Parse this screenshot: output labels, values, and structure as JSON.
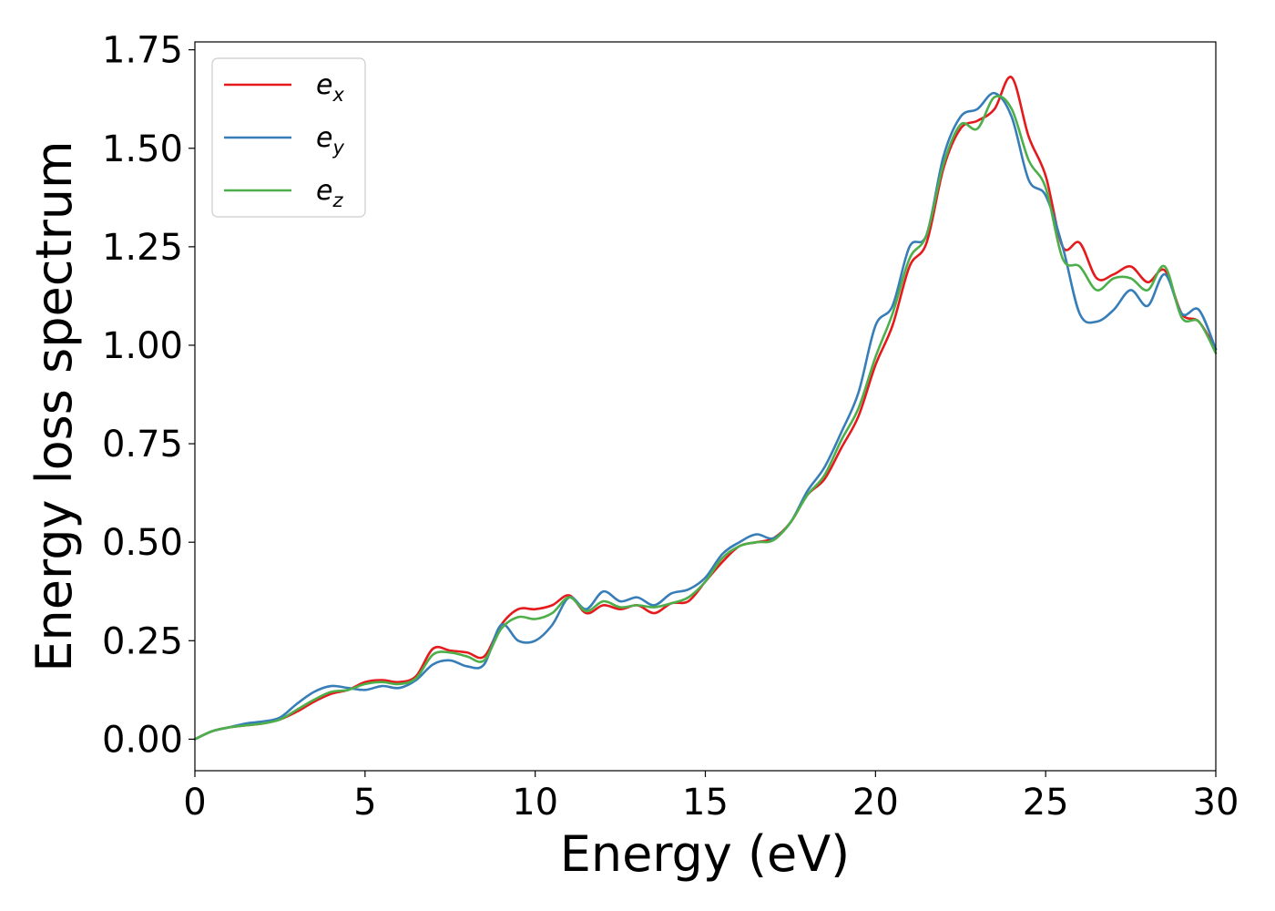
{
  "chart_data": {
    "type": "line",
    "xlabel": "Energy (eV)",
    "ylabel": "Energy loss spectrum",
    "xlim": [
      0,
      30
    ],
    "ylim": [
      -0.08,
      1.77
    ],
    "xticks": [
      0,
      5,
      10,
      15,
      20,
      25,
      30
    ],
    "xtick_labels": [
      "0",
      "5",
      "10",
      "15",
      "20",
      "25",
      "30"
    ],
    "yticks": [
      0.0,
      0.25,
      0.5,
      0.75,
      1.0,
      1.25,
      1.5,
      1.75
    ],
    "ytick_labels": [
      "0.00",
      "0.25",
      "0.50",
      "0.75",
      "1.00",
      "1.25",
      "1.50",
      "1.75"
    ],
    "grid": false,
    "legend_position": "top-left",
    "series": [
      {
        "name": "e_x",
        "label_main": "e",
        "label_sub": "x",
        "color": "#e41a1c",
        "x": [
          0,
          0.5,
          1,
          1.5,
          2,
          2.5,
          3,
          3.5,
          4,
          4.5,
          5,
          5.5,
          6,
          6.5,
          7,
          7.5,
          8,
          8.5,
          9,
          9.5,
          10,
          10.5,
          11,
          11.5,
          12,
          12.5,
          13,
          13.5,
          14,
          14.5,
          15,
          15.5,
          16,
          16.5,
          17,
          17.5,
          18,
          18.5,
          19,
          19.5,
          20,
          20.5,
          21,
          21.5,
          22,
          22.5,
          23,
          23.5,
          24,
          24.5,
          25,
          25.5,
          26,
          26.5,
          27,
          27.5,
          28,
          28.5,
          29,
          29.5,
          30
        ],
        "y": [
          0.0,
          0.02,
          0.03,
          0.035,
          0.04,
          0.05,
          0.07,
          0.095,
          0.115,
          0.125,
          0.145,
          0.15,
          0.145,
          0.16,
          0.23,
          0.225,
          0.22,
          0.21,
          0.29,
          0.33,
          0.33,
          0.34,
          0.365,
          0.32,
          0.34,
          0.33,
          0.34,
          0.32,
          0.345,
          0.35,
          0.4,
          0.45,
          0.49,
          0.5,
          0.51,
          0.55,
          0.62,
          0.66,
          0.74,
          0.82,
          0.95,
          1.05,
          1.2,
          1.26,
          1.45,
          1.55,
          1.57,
          1.6,
          1.68,
          1.53,
          1.43,
          1.25,
          1.26,
          1.17,
          1.18,
          1.2,
          1.16,
          1.19,
          1.08,
          1.06,
          0.99
        ]
      },
      {
        "name": "e_y",
        "label_main": "e",
        "label_sub": "y",
        "color": "#377eb8",
        "x": [
          0,
          0.5,
          1,
          1.5,
          2,
          2.5,
          3,
          3.5,
          4,
          4.5,
          5,
          5.5,
          6,
          6.5,
          7,
          7.5,
          8,
          8.5,
          9,
          9.5,
          10,
          10.5,
          11,
          11.5,
          12,
          12.5,
          13,
          13.5,
          14,
          14.5,
          15,
          15.5,
          16,
          16.5,
          17,
          17.5,
          18,
          18.5,
          19,
          19.5,
          20,
          20.5,
          21,
          21.5,
          22,
          22.5,
          23,
          23.5,
          24,
          24.5,
          25,
          25.5,
          26,
          26.5,
          27,
          27.5,
          28,
          28.5,
          29,
          29.5,
          30
        ],
        "y": [
          0.0,
          0.02,
          0.03,
          0.04,
          0.045,
          0.055,
          0.09,
          0.12,
          0.135,
          0.13,
          0.125,
          0.135,
          0.13,
          0.15,
          0.19,
          0.2,
          0.185,
          0.19,
          0.29,
          0.25,
          0.25,
          0.29,
          0.36,
          0.33,
          0.375,
          0.35,
          0.36,
          0.34,
          0.37,
          0.38,
          0.41,
          0.47,
          0.5,
          0.52,
          0.51,
          0.55,
          0.63,
          0.69,
          0.78,
          0.88,
          1.05,
          1.1,
          1.25,
          1.28,
          1.48,
          1.58,
          1.6,
          1.64,
          1.58,
          1.42,
          1.38,
          1.25,
          1.08,
          1.06,
          1.09,
          1.14,
          1.1,
          1.18,
          1.08,
          1.09,
          0.99
        ]
      },
      {
        "name": "e_z",
        "label_main": "e",
        "label_sub": "z",
        "color": "#4daf4a",
        "x": [
          0,
          0.5,
          1,
          1.5,
          2,
          2.5,
          3,
          3.5,
          4,
          4.5,
          5,
          5.5,
          6,
          6.5,
          7,
          7.5,
          8,
          8.5,
          9,
          9.5,
          10,
          10.5,
          11,
          11.5,
          12,
          12.5,
          13,
          13.5,
          14,
          14.5,
          15,
          15.5,
          16,
          16.5,
          17,
          17.5,
          18,
          18.5,
          19,
          19.5,
          20,
          20.5,
          21,
          21.5,
          22,
          22.5,
          23,
          23.5,
          24,
          24.5,
          25,
          25.5,
          26,
          26.5,
          27,
          27.5,
          28,
          28.5,
          29,
          29.5,
          30
        ],
        "y": [
          0.0,
          0.02,
          0.03,
          0.035,
          0.04,
          0.05,
          0.075,
          0.1,
          0.12,
          0.125,
          0.14,
          0.145,
          0.14,
          0.155,
          0.215,
          0.22,
          0.21,
          0.2,
          0.28,
          0.31,
          0.305,
          0.32,
          0.36,
          0.325,
          0.35,
          0.335,
          0.34,
          0.335,
          0.345,
          0.36,
          0.4,
          0.46,
          0.49,
          0.5,
          0.505,
          0.55,
          0.62,
          0.67,
          0.76,
          0.84,
          0.97,
          1.08,
          1.22,
          1.28,
          1.46,
          1.56,
          1.55,
          1.63,
          1.6,
          1.47,
          1.4,
          1.22,
          1.2,
          1.14,
          1.17,
          1.17,
          1.14,
          1.2,
          1.07,
          1.06,
          0.98
        ]
      }
    ]
  }
}
